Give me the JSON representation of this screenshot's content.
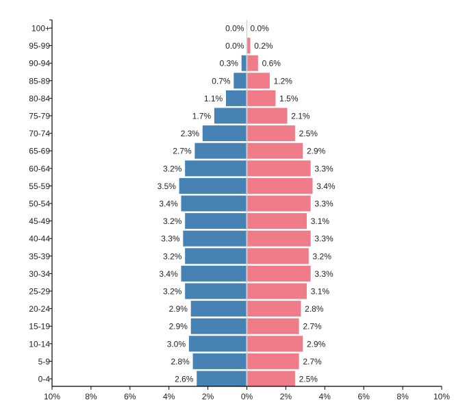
{
  "chart_data": {
    "type": "bar",
    "orientation": "horizontal-population-pyramid",
    "title": "",
    "xlabel": "",
    "ylabel": "",
    "xlim": [
      -10,
      10
    ],
    "x_ticks": [
      -10,
      -8,
      -6,
      -4,
      -2,
      0,
      2,
      4,
      6,
      8,
      10
    ],
    "x_tick_labels": [
      "10%",
      "8%",
      "6%",
      "4%",
      "2%",
      "0%",
      "2%",
      "4%",
      "6%",
      "8%",
      "10%"
    ],
    "categories": [
      "100+",
      "95-99",
      "90-94",
      "85-89",
      "80-84",
      "75-79",
      "70-74",
      "65-69",
      "60-64",
      "55-59",
      "50-54",
      "45-49",
      "40-44",
      "35-39",
      "30-34",
      "25-29",
      "20-24",
      "15-19",
      "10-14",
      "5-9",
      "0-4"
    ],
    "series": [
      {
        "side": "left",
        "color": "#4682b4",
        "values": [
          0.0,
          0.0,
          0.3,
          0.7,
          1.1,
          1.7,
          2.3,
          2.7,
          3.2,
          3.5,
          3.4,
          3.2,
          3.3,
          3.2,
          3.4,
          3.2,
          2.9,
          2.9,
          3.0,
          2.8,
          2.6
        ],
        "labels": [
          "0.0%",
          "0.0%",
          "0.3%",
          "0.7%",
          "1.1%",
          "1.7%",
          "2.3%",
          "2.7%",
          "3.2%",
          "3.5%",
          "3.4%",
          "3.2%",
          "3.3%",
          "3.2%",
          "3.4%",
          "3.2%",
          "2.9%",
          "2.9%",
          "3.0%",
          "2.8%",
          "2.6%"
        ]
      },
      {
        "side": "right",
        "color": "#f07b89",
        "values": [
          0.0,
          0.2,
          0.6,
          1.2,
          1.5,
          2.1,
          2.5,
          2.9,
          3.3,
          3.4,
          3.3,
          3.1,
          3.3,
          3.2,
          3.3,
          3.1,
          2.8,
          2.7,
          2.9,
          2.7,
          2.5
        ],
        "labels": [
          "0.0%",
          "0.2%",
          "0.6%",
          "1.2%",
          "1.5%",
          "2.1%",
          "2.5%",
          "2.9%",
          "3.3%",
          "3.4%",
          "3.3%",
          "3.1%",
          "3.3%",
          "3.2%",
          "3.3%",
          "3.1%",
          "2.8%",
          "2.7%",
          "2.9%",
          "2.7%",
          "2.5%"
        ]
      }
    ],
    "grid": false,
    "legend": "none"
  }
}
